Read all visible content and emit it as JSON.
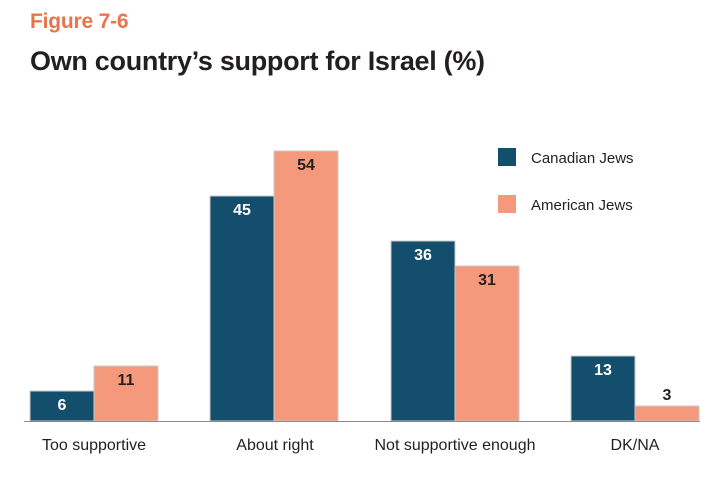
{
  "figure_label": "Figure 7-6",
  "title": "Own country’s support for Israel (%)",
  "colors": {
    "figure_label": "#e8744a",
    "canadian": "#134f6d",
    "american": "#f5997c",
    "bar_stroke": "#c9c9c9",
    "baseline": "#8a8a8a"
  },
  "chart_data": {
    "type": "bar",
    "title": "Own country’s support for Israel (%)",
    "xlabel": "",
    "ylabel": "",
    "ylim": [
      0,
      60
    ],
    "grid": false,
    "legend": "top-right",
    "categories": [
      "Too supportive",
      "About right",
      "Not supportive enough",
      "DK/NA"
    ],
    "series": [
      {
        "name": "Canadian Jews",
        "color": "#134f6d",
        "label_color": "#ffffff",
        "values": [
          6,
          45,
          36,
          13
        ]
      },
      {
        "name": "American Jews",
        "color": "#f5997c",
        "label_color": "#231f20",
        "values": [
          11,
          54,
          31,
          3
        ]
      }
    ]
  }
}
